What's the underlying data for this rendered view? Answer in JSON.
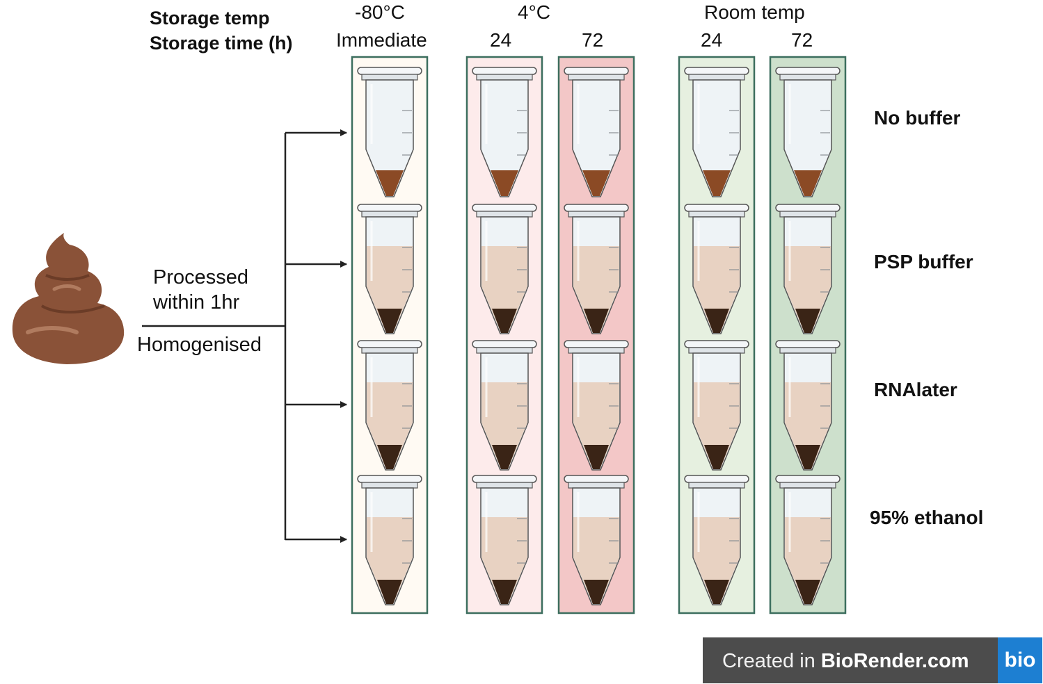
{
  "header": {
    "storage_temp_label": "Storage temp",
    "storage_time_label": "Storage time (h)",
    "temp_groups": [
      "-80°C",
      "4°C",
      "Room temp"
    ]
  },
  "columns": [
    {
      "time": "Immediate",
      "bg": "#fffaf3",
      "border": "#3c6e5e"
    },
    {
      "time": "24",
      "bg": "#fdebeb",
      "border": "#3c6e5e"
    },
    {
      "time": "72",
      "bg": "#f3c7c7",
      "border": "#3c6e5e"
    },
    {
      "time": "24",
      "bg": "#e6f0e0",
      "border": "#3c6e5e"
    },
    {
      "time": "72",
      "bg": "#cde0cc",
      "border": "#3c6e5e"
    }
  ],
  "rows": [
    {
      "label": "No buffer",
      "buffer": false
    },
    {
      "label": "PSP buffer",
      "buffer": true
    },
    {
      "label": "RNAlater",
      "buffer": true
    },
    {
      "label": "95% ethanol",
      "buffer": true
    }
  ],
  "flow": {
    "line1": "Processed",
    "line2": "within 1hr",
    "line3": "Homogenised"
  },
  "sample_icon": "stool-sample-icon",
  "colors": {
    "stool": "#8a5238",
    "stool_light": "#a56a4d",
    "buffer_liquid": "#e8d2c2",
    "sediment_dark": "#3a2416",
    "sediment_brown": "#8b4a25",
    "tube_glass": "#eef3f6",
    "tube_outline": "#555555"
  },
  "credit": {
    "prefix": "Created in ",
    "brand": "BioRender.com",
    "badge": "bio"
  }
}
